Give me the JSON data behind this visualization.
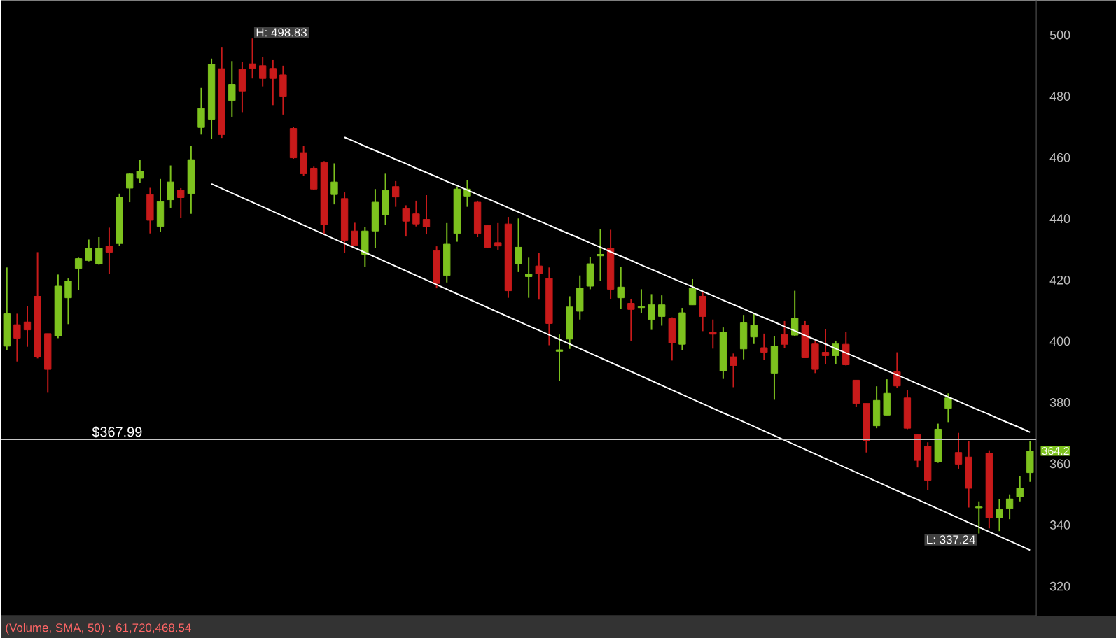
{
  "chart_data": {
    "type": "candlestick",
    "categories": [
      null,
      null,
      null,
      null,
      null,
      null,
      null,
      null,
      null,
      null,
      null,
      null,
      null,
      null,
      null,
      null,
      null,
      null,
      null,
      null,
      null,
      null,
      null,
      null,
      null,
      null,
      null,
      null,
      null,
      null,
      null,
      null,
      null,
      null,
      null,
      null,
      null,
      null,
      null,
      null,
      null,
      null,
      null,
      null,
      null,
      null,
      null,
      null,
      null,
      null,
      null,
      null,
      null,
      null,
      null,
      null,
      null,
      null,
      null,
      null,
      null,
      null,
      null,
      null,
      null,
      null,
      null,
      null,
      null,
      null,
      null,
      null,
      null,
      null,
      null,
      null,
      null,
      null,
      null,
      null,
      null,
      null,
      null,
      null,
      null,
      null,
      null,
      null,
      null,
      null,
      null,
      null,
      null,
      null,
      null,
      null,
      null,
      null,
      null,
      null,
      null
    ],
    "ohlc": [
      [
        398.4,
        424.1,
        397.0,
        409.0
      ],
      [
        405.4,
        409.0,
        393.4,
        401.0
      ],
      [
        406.3,
        411.6,
        398.2,
        403.7
      ],
      [
        414.7,
        429.1,
        394.4,
        394.9
      ],
      [
        402.5,
        402.5,
        383.2,
        390.8
      ],
      [
        401.7,
        421.8,
        401.0,
        418.0
      ],
      [
        414.2,
        420.5,
        405.6,
        419.6
      ],
      [
        423.8,
        427.3,
        416.7,
        427.0
      ],
      [
        426.4,
        433.2,
        426.1,
        430.4
      ],
      [
        425.2,
        434.0,
        425.0,
        430.4
      ],
      [
        431.1,
        437.1,
        422.0,
        429.1
      ],
      [
        431.9,
        448.2,
        431.1,
        447.1
      ],
      [
        450.0,
        455.0,
        445.4,
        454.6
      ],
      [
        453.2,
        459.3,
        451.7,
        455.5
      ],
      [
        447.9,
        450.1,
        435.2,
        439.5
      ],
      [
        437.5,
        453.0,
        435.7,
        445.6
      ],
      [
        446.2,
        457.4,
        443.6,
        452.0
      ],
      [
        449.4,
        450.0,
        440.3,
        446.9
      ],
      [
        448.2,
        463.7,
        441.6,
        459.3
      ],
      [
        469.8,
        482.7,
        467.5,
        476.0
      ],
      [
        472.5,
        492.3,
        466.0,
        490.5
      ],
      [
        489.0,
        496.1,
        466.4,
        467.5
      ],
      [
        478.6,
        491.5,
        473.3,
        483.9
      ],
      [
        488.8,
        491.2,
        474.8,
        481.7
      ],
      [
        490.6,
        498.83,
        485.8,
        489.1
      ],
      [
        490.0,
        492.8,
        483.2,
        485.8
      ],
      [
        489.1,
        491.8,
        477.1,
        485.8
      ],
      [
        487.0,
        490.0,
        474.0,
        480.0
      ],
      [
        469.5,
        469.9,
        459.6,
        459.9
      ],
      [
        461.6,
        463.8,
        454.0,
        454.7
      ],
      [
        456.5,
        457.0,
        449.4,
        449.7
      ],
      [
        458.4,
        458.8,
        434.9,
        438.0
      ],
      [
        447.9,
        458.1,
        444.7,
        452.0
      ],
      [
        446.6,
        448.6,
        428.8,
        433.0
      ],
      [
        436.0,
        438.7,
        431.1,
        431.4
      ],
      [
        428.4,
        437.2,
        424.3,
        436.0
      ],
      [
        436.0,
        449.7,
        430.4,
        445.4
      ],
      [
        441.3,
        454.7,
        438.0,
        449.2
      ],
      [
        450.5,
        452.3,
        443.9,
        447.1
      ],
      [
        443.3,
        444.4,
        434.2,
        439.2
      ],
      [
        441.6,
        445.9,
        437.5,
        438.3
      ],
      [
        439.8,
        447.7,
        434.9,
        437.4
      ],
      [
        429.6,
        431.0,
        417.3,
        418.9
      ],
      [
        421.5,
        438.6,
        419.2,
        431.7
      ],
      [
        435.2,
        450.5,
        432.5,
        449.7
      ],
      [
        447.4,
        452.7,
        443.9,
        449.7
      ],
      [
        445.4,
        445.9,
        434.0,
        435.2
      ],
      [
        437.8,
        437.8,
        430.4,
        430.7
      ],
      [
        432.2,
        438.6,
        429.9,
        431.1
      ],
      [
        438.3,
        440.6,
        414.2,
        416.5
      ],
      [
        425.3,
        440.1,
        422.6,
        430.7
      ],
      [
        421.1,
        427.3,
        414.2,
        422.0
      ],
      [
        424.6,
        428.8,
        413.6,
        422.0
      ],
      [
        420.5,
        424.1,
        398.7,
        405.8
      ],
      [
        396.7,
        402.2,
        387.0,
        397.2
      ],
      [
        400.7,
        414.7,
        397.5,
        411.2
      ],
      [
        409.8,
        421.5,
        407.1,
        417.4
      ],
      [
        418.0,
        427.6,
        417.0,
        425.3
      ],
      [
        427.9,
        436.7,
        419.7,
        428.4
      ],
      [
        430.4,
        436.4,
        413.9,
        417.0
      ],
      [
        414.2,
        424.3,
        410.6,
        417.7
      ],
      [
        412.4,
        413.9,
        400.2,
        410.4
      ],
      [
        411.0,
        417.0,
        409.3,
        411.3
      ],
      [
        407.1,
        415.4,
        403.7,
        411.9
      ],
      [
        408.1,
        415.0,
        405.1,
        411.9
      ],
      [
        407.4,
        407.8,
        393.7,
        399.5
      ],
      [
        399.0,
        410.9,
        397.2,
        409.3
      ],
      [
        411.9,
        420.3,
        411.9,
        417.4
      ],
      [
        414.7,
        416.2,
        403.3,
        408.1
      ],
      [
        403.0,
        407.1,
        397.6,
        402.3
      ],
      [
        390.3,
        404.5,
        387.7,
        403.0
      ],
      [
        394.9,
        396.0,
        385.0,
        392.1
      ],
      [
        397.5,
        408.6,
        394.1,
        406.0
      ],
      [
        401.4,
        409.0,
        399.1,
        405.2
      ],
      [
        397.9,
        402.5,
        393.8,
        396.4
      ],
      [
        389.6,
        401.7,
        380.9,
        398.4
      ],
      [
        402.2,
        406.6,
        397.9,
        399.0
      ],
      [
        402.0,
        416.5,
        401.7,
        407.5
      ],
      [
        405.2,
        406.6,
        394.6,
        394.6
      ],
      [
        399.1,
        400.2,
        389.6,
        390.8
      ],
      [
        396.4,
        404.0,
        392.6,
        395.3
      ],
      [
        395.3,
        400.2,
        392.6,
        399.1
      ],
      [
        399.0,
        403.0,
        392.1,
        392.3
      ],
      [
        387.3,
        387.3,
        378.5,
        379.7
      ],
      [
        379.7,
        379.7,
        363.7,
        367.5
      ],
      [
        372.4,
        385.3,
        371.6,
        380.7
      ],
      [
        375.9,
        387.6,
        375.9,
        383.0
      ],
      [
        390.0,
        396.4,
        384.7,
        385.4
      ],
      [
        381.5,
        384.2,
        371.3,
        371.6
      ],
      [
        369.5,
        369.8,
        358.8,
        361.1
      ],
      [
        365.7,
        367.0,
        351.5,
        354.6
      ],
      [
        360.6,
        373.1,
        360.3,
        371.3
      ],
      [
        378.1,
        383.0,
        373.6,
        381.5
      ],
      [
        363.7,
        370.1,
        358.4,
        359.9
      ],
      [
        362.2,
        367.5,
        345.7,
        352.0
      ],
      [
        345.6,
        347.7,
        337.24,
        345.9
      ],
      [
        363.4,
        364.4,
        338.9,
        342.4
      ],
      [
        342.4,
        348.5,
        338.0,
        345.1
      ],
      [
        345.4,
        350.0,
        341.9,
        348.5
      ],
      [
        349.2,
        356.1,
        347.7,
        352.0
      ],
      [
        357.1,
        367.5,
        354.1,
        364.2
      ]
    ],
    "colors": [
      "#7dc21e",
      "#c81a1a",
      "#c81a1a",
      "#c81a1a",
      "#c81a1a",
      "#7dc21e",
      "#7dc21e",
      "#7dc21e",
      "#7dc21e",
      "#7dc21e",
      "#c81a1a",
      "#7dc21e",
      "#7dc21e",
      "#7dc21e",
      "#c81a1a",
      "#7dc21e",
      "#7dc21e",
      "#c81a1a",
      "#7dc21e",
      "#7dc21e",
      "#7dc21e",
      "#c81a1a",
      "#7dc21e",
      "#c81a1a",
      "#c81a1a",
      "#c81a1a",
      "#c81a1a",
      "#c81a1a",
      "#c81a1a",
      "#c81a1a",
      "#c81a1a",
      "#c81a1a",
      "#7dc21e",
      "#c81a1a",
      "#c81a1a",
      "#7dc21e",
      "#7dc21e",
      "#7dc21e",
      "#c81a1a",
      "#c81a1a",
      "#c81a1a",
      "#c81a1a",
      "#c81a1a",
      "#7dc21e",
      "#7dc21e",
      "#7dc21e",
      "#c81a1a",
      "#c81a1a",
      "#c81a1a",
      "#c81a1a",
      "#7dc21e",
      "#7dc21e",
      "#c81a1a",
      "#c81a1a",
      "#7dc21e",
      "#7dc21e",
      "#7dc21e",
      "#7dc21e",
      "#7dc21e",
      "#c81a1a",
      "#7dc21e",
      "#c81a1a",
      "#7dc21e",
      "#7dc21e",
      "#7dc21e",
      "#c81a1a",
      "#7dc21e",
      "#7dc21e",
      "#c81a1a",
      "#c81a1a",
      "#7dc21e",
      "#c81a1a",
      "#7dc21e",
      "#7dc21e",
      "#c81a1a",
      "#7dc21e",
      "#c81a1a",
      "#7dc21e",
      "#c81a1a",
      "#c81a1a",
      "#c81a1a",
      "#7dc21e",
      "#c81a1a",
      "#c81a1a",
      "#c81a1a",
      "#7dc21e",
      "#7dc21e",
      "#c81a1a",
      "#c81a1a",
      "#c81a1a",
      "#c81a1a",
      "#7dc21e",
      "#7dc21e",
      "#c81a1a",
      "#c81a1a",
      "#7dc21e",
      "#c81a1a",
      "#7dc21e",
      "#7dc21e",
      "#7dc21e",
      "#7dc21e"
    ],
    "series": [
      {
        "type": "line",
        "color": "#ffffff",
        "values": [
          null,
          null,
          null,
          null,
          null,
          null,
          null,
          null,
          null,
          null,
          null,
          null,
          null,
          null,
          null,
          null,
          null,
          null,
          null,
          null,
          null,
          null,
          null,
          null,
          null,
          null,
          null,
          null,
          null,
          null,
          null,
          null,
          null,
          466.6,
          465.2,
          463.7,
          462.3,
          460.9,
          459.4,
          458.0,
          456.5,
          455.1,
          453.7,
          452.2,
          450.8,
          449.4,
          447.9,
          446.5,
          445.1,
          443.6,
          442.2,
          440.7,
          439.3,
          437.9,
          436.4,
          435.0,
          433.6,
          432.1,
          430.7,
          429.2,
          427.8,
          426.4,
          424.9,
          423.5,
          422.1,
          420.6,
          419.2,
          417.8,
          416.3,
          414.9,
          413.4,
          412.0,
          410.6,
          409.1,
          407.7,
          406.3,
          404.8,
          403.4,
          401.9,
          400.5,
          399.1,
          397.6,
          396.2,
          394.8,
          393.3,
          391.9,
          390.4,
          389.0,
          387.6,
          386.1,
          384.7,
          383.3,
          381.8,
          380.4,
          378.9,
          377.5,
          376.1,
          374.6,
          373.2,
          371.8,
          370.3
        ]
      },
      {
        "type": "line",
        "color": "#ffffff",
        "values": [
          null,
          null,
          null,
          null,
          null,
          null,
          null,
          null,
          null,
          null,
          null,
          null,
          null,
          null,
          null,
          null,
          null,
          null,
          null,
          null,
          451.4,
          449.9,
          448.4,
          446.9,
          445.4,
          443.9,
          442.4,
          440.9,
          439.4,
          437.9,
          436.4,
          434.9,
          433.4,
          431.9,
          430.5,
          429.0,
          427.5,
          426.0,
          424.5,
          423.0,
          421.5,
          420.0,
          418.5,
          417.0,
          415.5,
          414.0,
          412.5,
          411.0,
          409.5,
          408.0,
          406.5,
          405.0,
          403.6,
          402.1,
          400.6,
          399.1,
          397.6,
          396.1,
          394.6,
          393.1,
          391.6,
          390.1,
          388.6,
          387.1,
          385.6,
          384.1,
          382.6,
          381.1,
          379.6,
          378.1,
          376.6,
          375.2,
          373.7,
          372.2,
          370.7,
          369.2,
          367.7,
          366.2,
          364.7,
          363.2,
          361.7,
          360.2,
          358.7,
          357.2,
          355.7,
          354.2,
          352.7,
          351.2,
          349.7,
          348.3,
          346.8,
          345.3,
          343.8,
          342.3,
          340.8,
          339.3,
          337.8,
          336.3,
          334.8,
          333.3,
          331.8
        ]
      }
    ],
    "ylim": [
      310.4,
      511.3
    ],
    "yticks": [
      320,
      340,
      360,
      380,
      400,
      420,
      440,
      460,
      480,
      500
    ],
    "tick_labels": "y",
    "grid": false,
    "ref_lines": [
      {
        "axis": "y",
        "value": 367.99,
        "label": "$367.99",
        "color": "#c8c8c8"
      }
    ],
    "annotations": [
      "H: 498.83",
      "L: 337.24",
      "364.2",
      "(Volume, SMA, 50) : 61,720,468.54"
    ]
  }
}
